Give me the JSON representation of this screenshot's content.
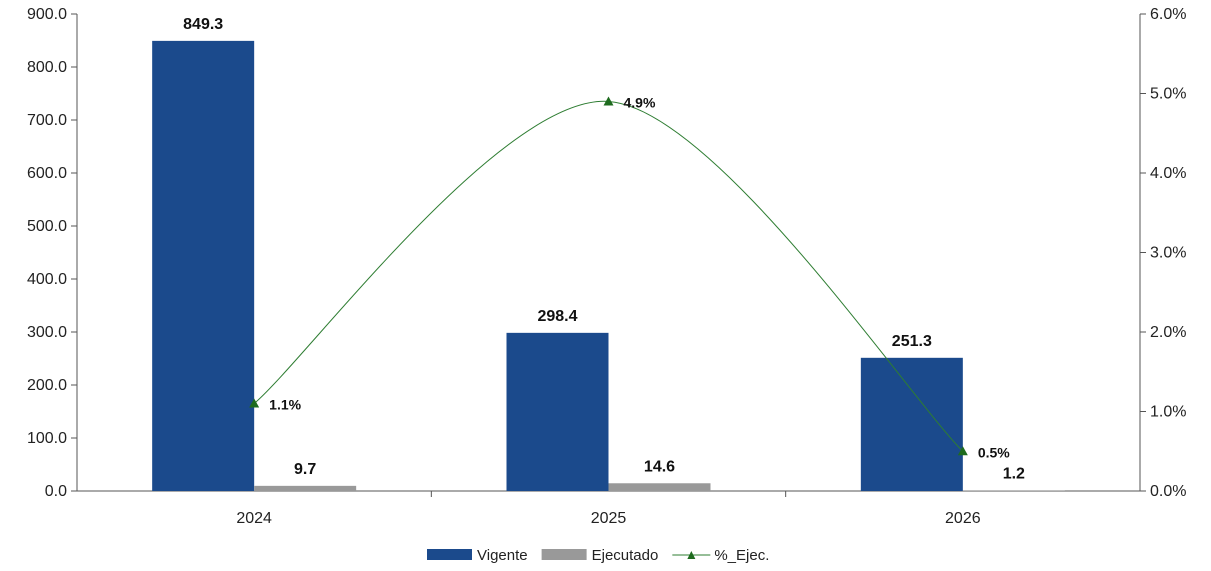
{
  "chart_data": {
    "type": "bar",
    "categories": [
      "2024",
      "2025",
      "2026"
    ],
    "series": [
      {
        "name": "Vigente",
        "kind": "bar",
        "axis": "left",
        "color": "#1b4a8c",
        "values": [
          849.3,
          298.4,
          251.3
        ],
        "labels": [
          "849.3",
          "298.4",
          "251.3"
        ]
      },
      {
        "name": "Ejecutado",
        "kind": "bar",
        "axis": "left",
        "color": "#999999",
        "values": [
          9.7,
          14.6,
          1.2
        ],
        "labels": [
          "9.7",
          "14.6",
          "1.2"
        ]
      },
      {
        "name": "%_Ejec.",
        "kind": "line",
        "axis": "right",
        "color": "#2e7d32",
        "values": [
          1.1,
          4.9,
          0.5
        ],
        "labels": [
          "1.1%",
          "4.9%",
          "0.5%"
        ]
      }
    ],
    "y_left": {
      "min": 0,
      "max": 900,
      "step": 100,
      "ticks": [
        "0.0",
        "100.0",
        "200.0",
        "300.0",
        "400.0",
        "500.0",
        "600.0",
        "700.0",
        "800.0",
        "900.0"
      ]
    },
    "y_right": {
      "min": 0,
      "max": 6,
      "step": 1,
      "ticks": [
        "0.0%",
        "1.0%",
        "2.0%",
        "3.0%",
        "4.0%",
        "5.0%",
        "6.0%"
      ]
    },
    "grid": false,
    "legend_position": "bottom"
  }
}
